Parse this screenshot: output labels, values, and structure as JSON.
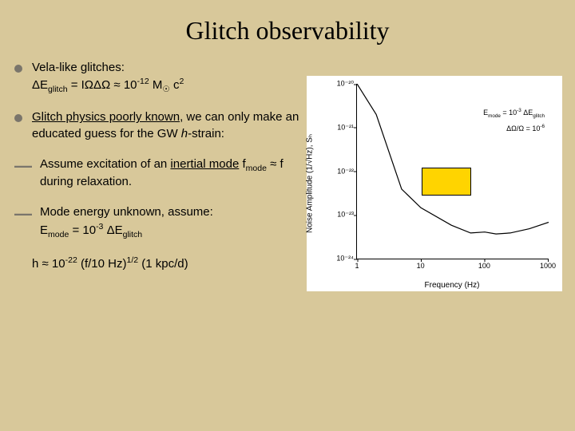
{
  "title": "Glitch observability",
  "bullets": {
    "b1": {
      "line1": "Vela-like glitches:",
      "line2_pre": "ΔE",
      "line2_sub1": "glitch",
      "line2_mid": " = IΩΔΩ ≈ 10",
      "line2_sup1": "-12",
      "line2_mid2": " M",
      "line2_sub2": "☉",
      "line2_end": " c",
      "line2_sup2": "2"
    },
    "b2": {
      "line1a": "Glitch physics poorly known",
      "line1b": ", we can only make an educated guess for the GW ",
      "line1c": "h",
      "line1d": "-strain:"
    },
    "d1": {
      "t1": "Assume excitation of an ",
      "t2": "inertial mode",
      "t3": " f",
      "t3sub": "mode",
      "t4": " ≈ f during relaxation."
    },
    "d2": {
      "t1": "Mode energy unknown, assume:",
      "t2a": "E",
      "t2sub": "mode",
      "t2b": " = 10",
      "t2sup": "-3",
      "t2c": " ΔE",
      "t2sub2": "glitch"
    },
    "eq": {
      "a": "h ≈ 10",
      "sup1": "-22",
      "b": " (f/10 Hz)",
      "sup2": "1/2",
      "c": " (1 kpc/d)"
    }
  },
  "chart": {
    "type": "line",
    "background_color": "#ffffff",
    "line_color": "#000000",
    "xlabel": "Frequency (Hz)",
    "ylabel": "Noise Amplitude (1/√Hz), Sₕ",
    "x_log": true,
    "y_log": true,
    "xlim": [
      1,
      1000
    ],
    "ylim": [
      1e-24,
      1e-20
    ],
    "xtick_labels": [
      "1",
      "10",
      "100",
      "1000"
    ],
    "ytick_labels": [
      "10⁻²⁰",
      "10⁻²¹",
      "10⁻²²",
      "10⁻²³",
      "10⁻²⁴"
    ],
    "ytick_positions_pct": [
      0,
      25,
      50,
      75,
      100
    ],
    "xtick_positions_pct": [
      0,
      33.3,
      66.7,
      100
    ],
    "curve_points": [
      [
        1,
        1e-20
      ],
      [
        2,
        2e-21
      ],
      [
        5,
        4e-23
      ],
      [
        10,
        1.5e-23
      ],
      [
        30,
        6e-24
      ],
      [
        60,
        4e-24
      ],
      [
        100,
        4.2e-24
      ],
      [
        150,
        3.8e-24
      ],
      [
        250,
        4e-24
      ],
      [
        500,
        5e-24
      ],
      [
        1000,
        7e-24
      ]
    ],
    "annot1": "E_mode = 10⁻³ ΔE_glitch",
    "annot2": "ΔΩ/Ω = 10⁻⁶",
    "yellow_box": {
      "left_pct": 34,
      "top_pct": 48,
      "w_pct": 26,
      "h_pct": 16,
      "color": "#ffd400"
    }
  }
}
